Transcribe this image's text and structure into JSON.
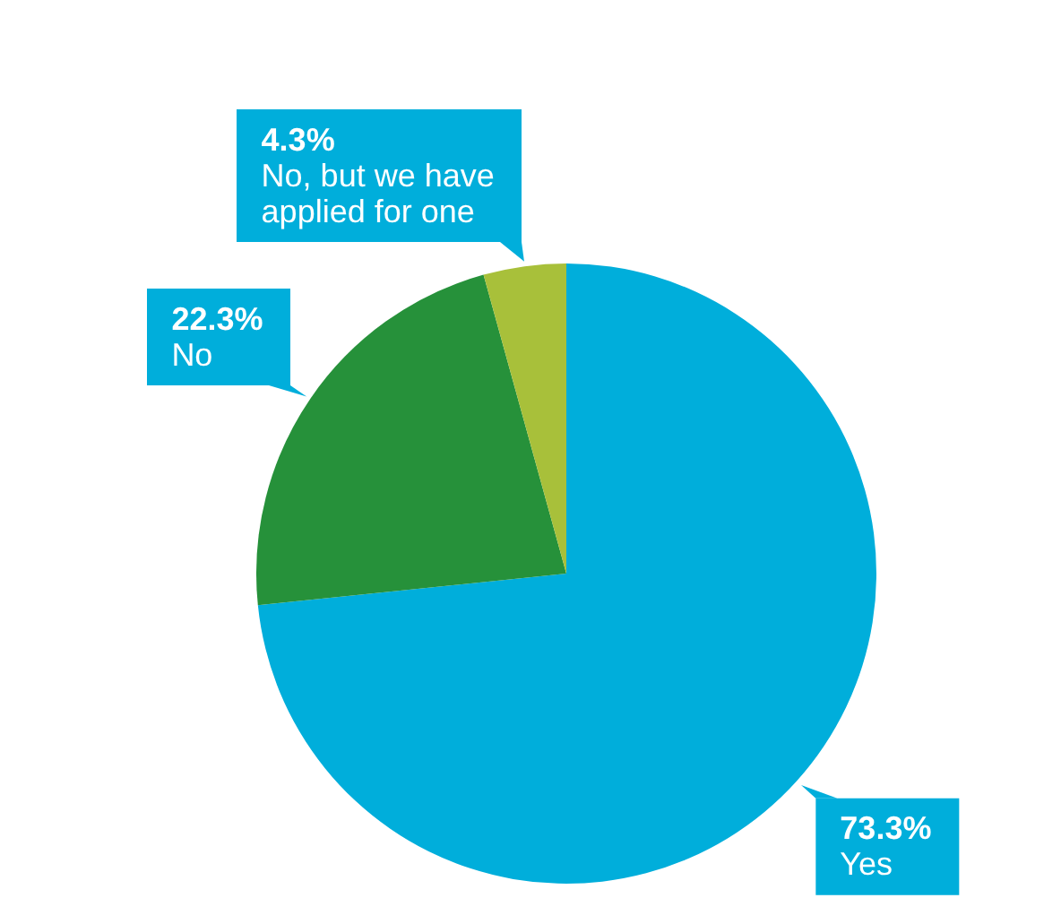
{
  "chart_data": {
    "type": "pie",
    "categories": [
      "Yes",
      "No",
      "No, but we have applied for one"
    ],
    "values": [
      73.3,
      22.3,
      4.3
    ],
    "colors": [
      "#00aedb",
      "#26913a",
      "#a8c03a"
    ],
    "value_labels": [
      "73.3%",
      "22.3%",
      "4.3%"
    ],
    "legend": false
  }
}
